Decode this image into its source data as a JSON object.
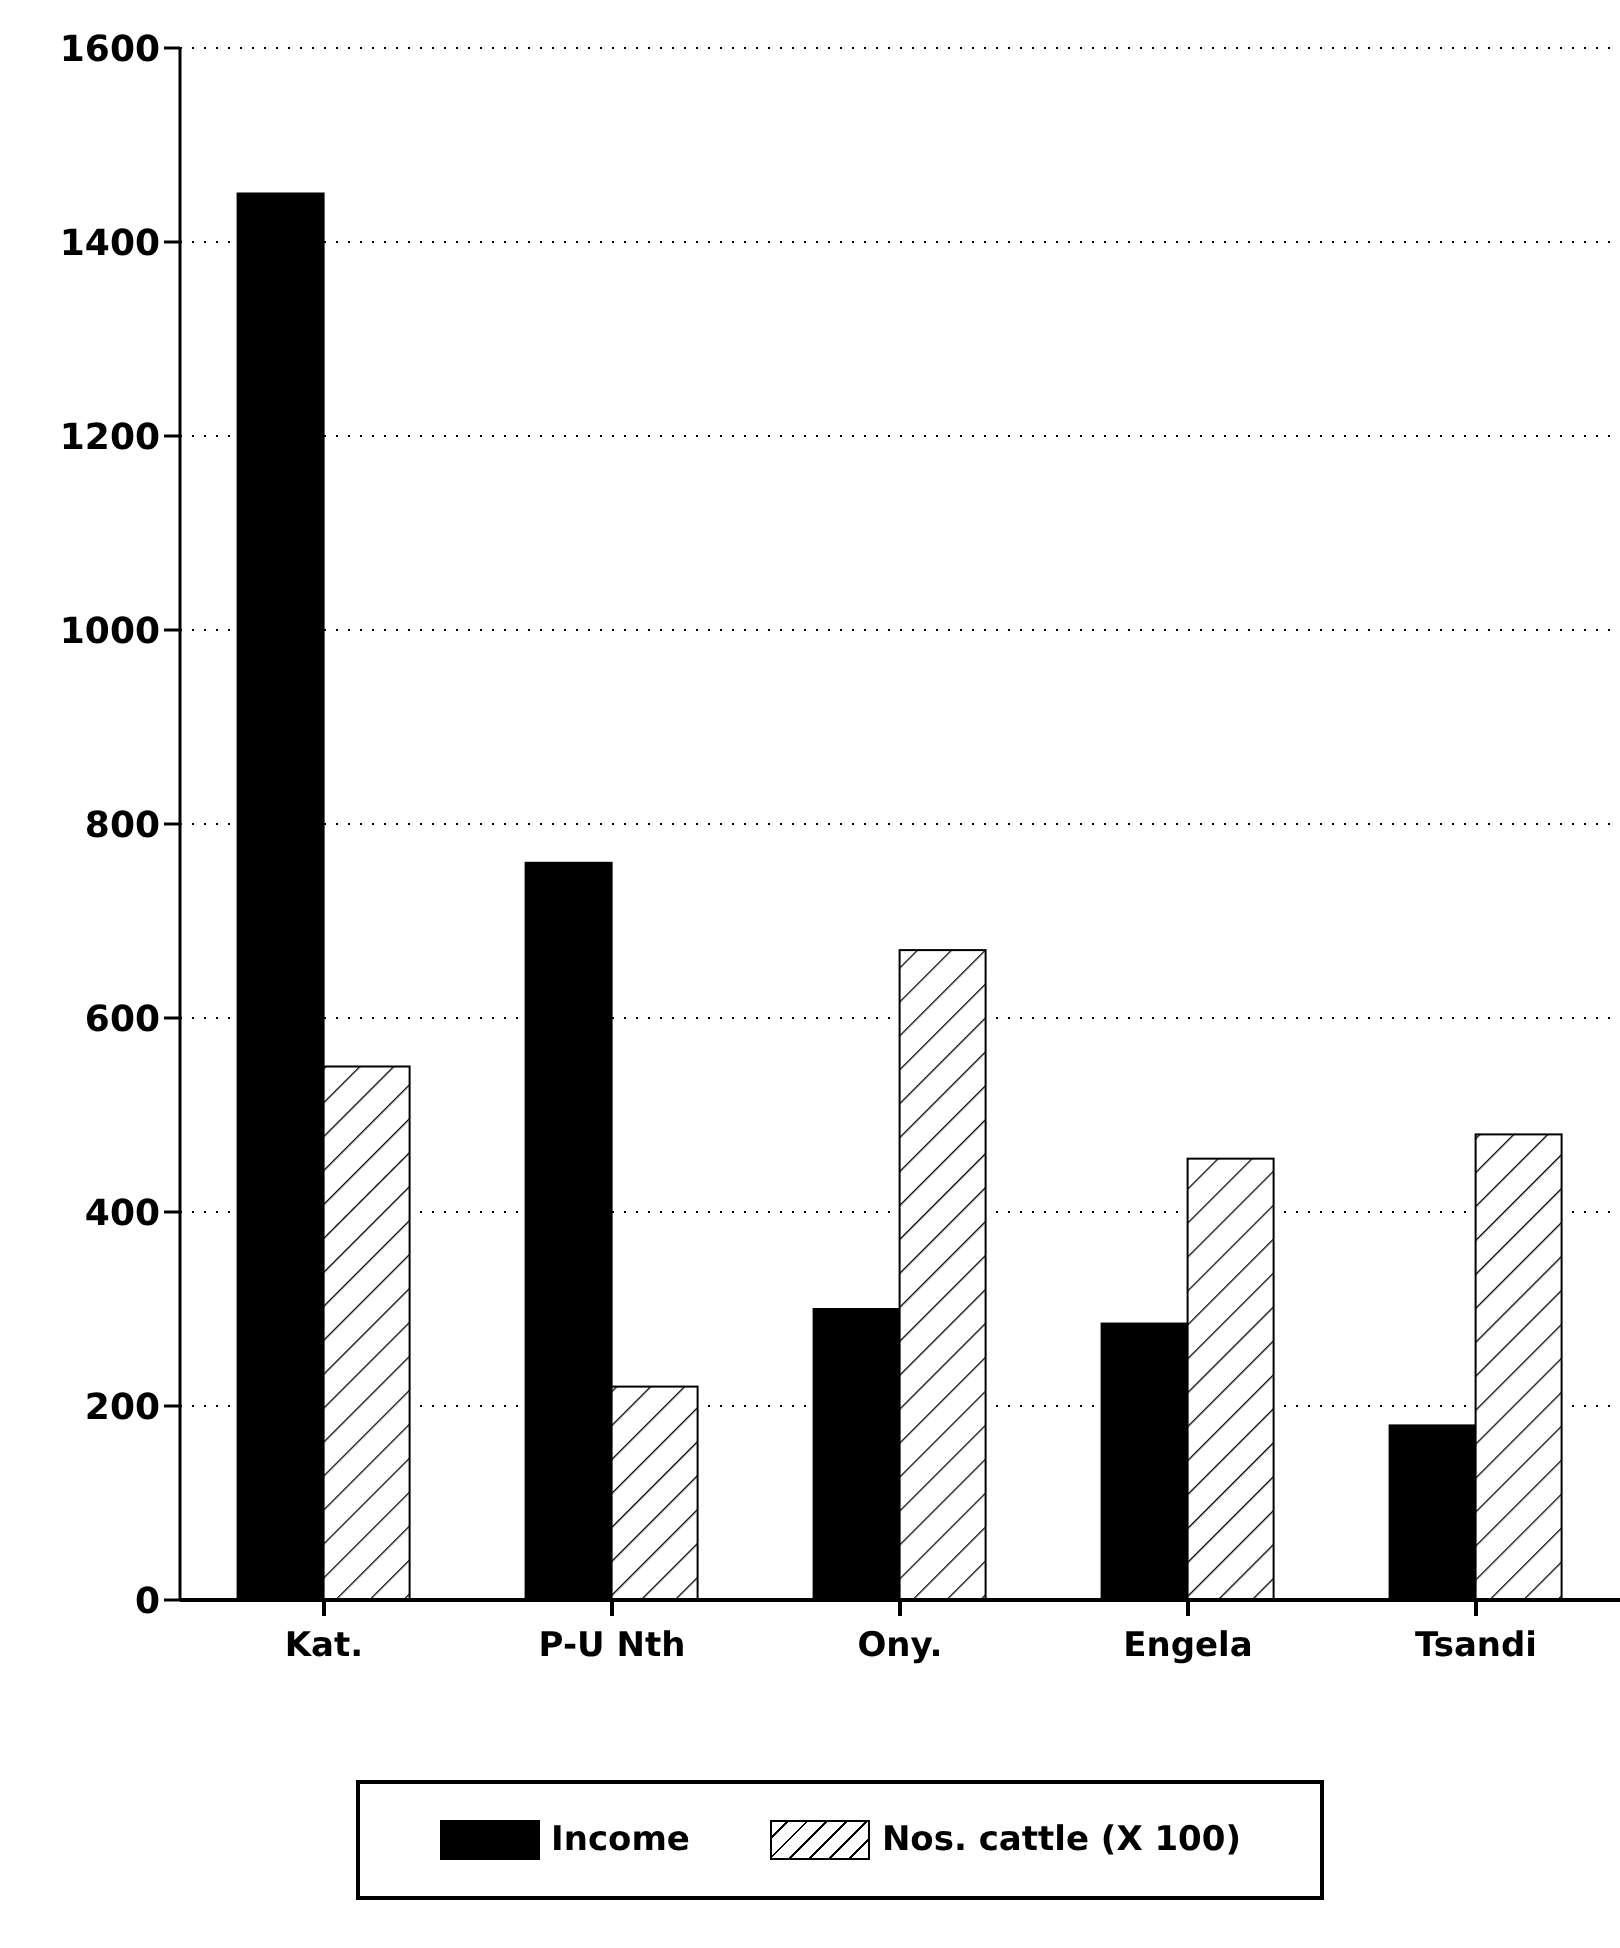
{
  "chart_data": {
    "type": "bar",
    "categories": [
      "Kat.",
      "P-U Nth",
      "Ony.",
      "Engela",
      "Tsandi"
    ],
    "series": [
      {
        "name": "Income",
        "color": "#000000",
        "values": [
          1450,
          760,
          300,
          285,
          180
        ]
      },
      {
        "name": "Nos. cattle (X 100)",
        "color": "#ffffff",
        "values": [
          550,
          220,
          670,
          455,
          480
        ]
      }
    ],
    "ylim": [
      0,
      1600
    ],
    "yticks": [
      0,
      200,
      400,
      600,
      800,
      1000,
      1200,
      1400,
      1600
    ],
    "grid": "y",
    "legend": "bottom"
  }
}
